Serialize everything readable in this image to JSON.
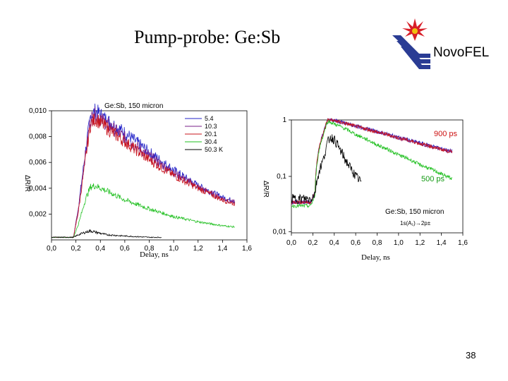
{
  "slide": {
    "title": "Pump-probe: Ge:Sb",
    "logo_text": "NovoFEL",
    "page_number": "38"
  },
  "colors": {
    "blue": "#2323c8",
    "red": "#c8141e",
    "purple": "#7a1f8a",
    "green": "#22c022",
    "black": "#000000",
    "annotation_red": "#cc1111",
    "annotation_green": "#119911",
    "logo_red": "#d81e28",
    "logo_blue": "#2a3c94",
    "logo_yellow": "#f0c010"
  },
  "chart_data": [
    {
      "type": "line",
      "title": "Ge:Sb, 150 micron",
      "xlabel": "Delay, ns",
      "ylabel": "ΔR/R",
      "xlim": [
        0.0,
        1.6
      ],
      "ylim": [
        0.0,
        0.01
      ],
      "x_ticks": [
        0.0,
        0.2,
        0.4,
        0.6,
        0.8,
        1.0,
        1.2,
        1.4,
        1.6
      ],
      "x_tick_labels": [
        "0,0",
        "0,2",
        "0,4",
        "0,6",
        "0,8",
        "1,0",
        "1,2",
        "1,4",
        "1,6"
      ],
      "y_ticks": [
        0.002,
        0.004,
        0.006,
        0.008,
        0.01
      ],
      "y_tick_labels": [
        "0,002",
        "0,004",
        "0,006",
        "0,008",
        "0,010"
      ],
      "legend": {
        "placement": "top-right",
        "unit_label": "K"
      },
      "series": [
        {
          "name": "5.4",
          "color": "blue",
          "x": [
            0.0,
            0.18,
            0.22,
            0.28,
            0.32,
            0.36,
            0.45,
            0.6,
            0.8,
            1.0,
            1.2,
            1.4,
            1.5
          ],
          "y": [
            0.0002,
            0.0002,
            0.0025,
            0.007,
            0.0096,
            0.01,
            0.0093,
            0.0083,
            0.0068,
            0.0054,
            0.0042,
            0.0033,
            0.003
          ]
        },
        {
          "name": "10.3",
          "color": "purple",
          "x": [
            0.0,
            0.18,
            0.22,
            0.28,
            0.32,
            0.36,
            0.45,
            0.6,
            0.8,
            1.0,
            1.2,
            1.4,
            1.5
          ],
          "y": [
            0.0002,
            0.0002,
            0.0024,
            0.0068,
            0.0094,
            0.0097,
            0.009,
            0.0079,
            0.0065,
            0.0052,
            0.0041,
            0.0032,
            0.0029
          ]
        },
        {
          "name": "20.1",
          "color": "red",
          "x": [
            0.0,
            0.18,
            0.22,
            0.28,
            0.32,
            0.36,
            0.45,
            0.6,
            0.8,
            1.0,
            1.2,
            1.4,
            1.5
          ],
          "y": [
            0.0002,
            0.0002,
            0.0022,
            0.0064,
            0.009,
            0.0094,
            0.0087,
            0.0076,
            0.0062,
            0.005,
            0.004,
            0.0031,
            0.0028
          ]
        },
        {
          "name": "30.4",
          "color": "green",
          "x": [
            0.0,
            0.18,
            0.22,
            0.28,
            0.32,
            0.36,
            0.45,
            0.6,
            0.8,
            1.0,
            1.2,
            1.4,
            1.5
          ],
          "y": [
            0.0002,
            0.0002,
            0.0012,
            0.0032,
            0.0041,
            0.0042,
            0.0038,
            0.0031,
            0.0024,
            0.0018,
            0.0014,
            0.0011,
            0.001
          ]
        },
        {
          "name": "50.3",
          "color": "black",
          "x": [
            0.0,
            0.18,
            0.22,
            0.28,
            0.32,
            0.36,
            0.45,
            0.6,
            0.8,
            0.9
          ],
          "y": [
            0.0002,
            0.0002,
            0.0004,
            0.0006,
            0.0007,
            0.0006,
            0.0004,
            0.0003,
            0.0002,
            0.0002
          ]
        }
      ]
    },
    {
      "type": "line",
      "yscale": "log",
      "title": "Ge:Sb, 150 micron",
      "fit_label": "1s(A₁)→2p±",
      "xlabel": "Delay, ns",
      "ylabel": "ΔR/R",
      "xlim": [
        0.0,
        1.6
      ],
      "ylim": [
        0.01,
        1
      ],
      "x_ticks": [
        0.0,
        0.2,
        0.4,
        0.6,
        0.8,
        1.0,
        1.2,
        1.4,
        1.6
      ],
      "x_tick_labels": [
        "0,0",
        "0,2",
        "0,4",
        "0,6",
        "0,8",
        "1,0",
        "1,2",
        "1,4",
        "1,6"
      ],
      "y_ticks": [
        0.01,
        0.1,
        1
      ],
      "y_tick_labels": [
        "0,01",
        "0,1",
        "1"
      ],
      "annotations": [
        {
          "text": "900 ps",
          "color": "annotation_red"
        },
        {
          "text": "500 ps",
          "color": "annotation_green"
        }
      ],
      "series": [
        {
          "name": "5.4",
          "color": "blue",
          "x": [
            0.0,
            0.18,
            0.22,
            0.3,
            0.34,
            0.4,
            0.6,
            0.8,
            1.0,
            1.2,
            1.4,
            1.5
          ],
          "y": [
            0.035,
            0.035,
            0.05,
            0.6,
            1.0,
            0.98,
            0.78,
            0.62,
            0.49,
            0.39,
            0.31,
            0.28
          ]
        },
        {
          "name": "10.3",
          "color": "purple",
          "x": [
            0.0,
            0.18,
            0.22,
            0.3,
            0.34,
            0.4,
            0.6,
            0.8,
            1.0,
            1.2,
            1.4,
            1.5
          ],
          "y": [
            0.035,
            0.035,
            0.05,
            0.6,
            1.0,
            0.97,
            0.77,
            0.61,
            0.48,
            0.38,
            0.3,
            0.27
          ]
        },
        {
          "name": "20.1",
          "color": "red",
          "x": [
            0.0,
            0.18,
            0.22,
            0.3,
            0.34,
            0.4,
            0.6,
            0.8,
            1.0,
            1.2,
            1.4,
            1.5
          ],
          "y": [
            0.035,
            0.035,
            0.05,
            0.6,
            1.0,
            0.97,
            0.77,
            0.61,
            0.48,
            0.38,
            0.3,
            0.27
          ]
        },
        {
          "name": "30.4",
          "color": "green",
          "x": [
            0.0,
            0.18,
            0.22,
            0.3,
            0.34,
            0.4,
            0.6,
            0.8,
            1.0,
            1.2,
            1.4,
            1.5
          ],
          "y": [
            0.03,
            0.03,
            0.045,
            0.55,
            0.95,
            0.85,
            0.55,
            0.36,
            0.24,
            0.16,
            0.11,
            0.09
          ]
        },
        {
          "name": "50.3",
          "color": "black",
          "x": [
            0.0,
            0.18,
            0.22,
            0.3,
            0.36,
            0.4,
            0.45,
            0.5,
            0.55,
            0.6,
            0.65
          ],
          "y": [
            0.04,
            0.04,
            0.05,
            0.2,
            0.5,
            0.45,
            0.3,
            0.2,
            0.14,
            0.1,
            0.08
          ]
        }
      ]
    }
  ]
}
